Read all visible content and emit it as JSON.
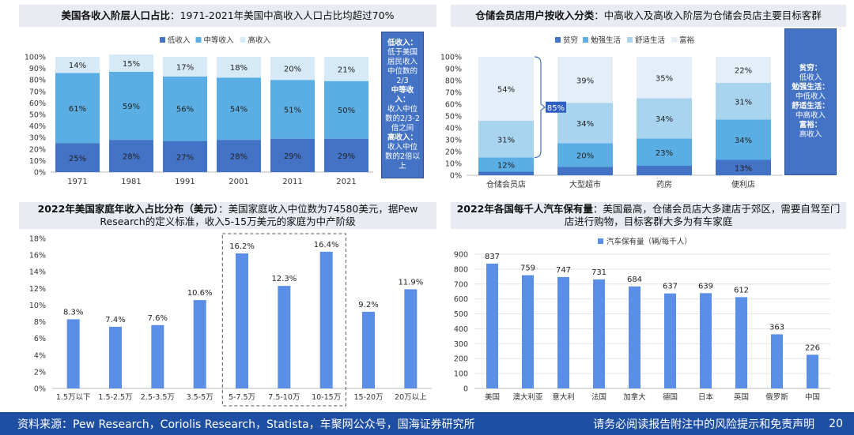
{
  "panels": {
    "p1": {
      "title_bold": "美国各收入阶层人口占比",
      "title_rest": "：1971-2021年美国中高收入人口占比均超过70%",
      "note": [
        {
          "head": "低收入：",
          "body": "低于美国居民收入中位数的2/3"
        },
        {
          "head": "中等收入：",
          "body": "收入中位数的2/3-2倍之间"
        },
        {
          "head": "高收入：",
          "body": "收入中位数的2倍以上"
        }
      ]
    },
    "p2": {
      "title_bold": "仓储会员店用户按收入分类",
      "title_rest": "：中高收入及高收入阶层为仓储会员店主要目标客群",
      "bracket_label": "85%",
      "note": [
        {
          "head": "贫穷：",
          "body": "低收入"
        },
        {
          "head": "勉强生活：",
          "body": "中低收入"
        },
        {
          "head": "舒适生活：",
          "body": "中高收入"
        },
        {
          "head": "富裕：",
          "body": "高收入"
        }
      ]
    },
    "p3": {
      "title_bold": "2022年美国家庭年收入占比分布（美元）",
      "title_rest": "：美国家庭收入中位数为74580美元，据Pew Research的定义标准，收入5-15万美元的家庭为中产阶级"
    },
    "p4": {
      "title_bold": "2022年各国每千人汽车保有量",
      "title_rest": "：美国最高，仓储会员店大多建店于郊区，需要自驾至门店进行购物，目标客群大多为有车家庭"
    }
  },
  "chart_data": [
    {
      "type": "bar",
      "stacked": true,
      "percent": true,
      "categories": [
        "1971",
        "1981",
        "1991",
        "2001",
        "2011",
        "2021"
      ],
      "series": [
        {
          "name": "低收入",
          "values": [
            25,
            28,
            27,
            28,
            29,
            29
          ],
          "color": "#4472c4"
        },
        {
          "name": "中等收入",
          "values": [
            61,
            59,
            56,
            54,
            51,
            50
          ],
          "color": "#5aaee3"
        },
        {
          "name": "高收入",
          "values": [
            14,
            15,
            17,
            18,
            20,
            21
          ],
          "color": "#d6e9f6"
        }
      ],
      "ylim": [
        0,
        100
      ],
      "yticks": [
        "0%",
        "10%",
        "20%",
        "30%",
        "40%",
        "50%",
        "60%",
        "70%",
        "80%",
        "90%",
        "100%"
      ],
      "legend": "top"
    },
    {
      "type": "bar",
      "stacked": true,
      "percent": true,
      "categories": [
        "仓储会员店",
        "大型超市",
        "药房",
        "便利店"
      ],
      "series": [
        {
          "name": "贫穷",
          "values": [
            3,
            7,
            8,
            13
          ],
          "color": "#4472c4"
        },
        {
          "name": "勉强生活",
          "values": [
            12,
            20,
            23,
            34
          ],
          "color": "#5aaee3"
        },
        {
          "name": "舒适生活",
          "values": [
            31,
            34,
            34,
            31
          ],
          "color": "#a9d4f0"
        },
        {
          "name": "富裕",
          "values": [
            54,
            39,
            35,
            22
          ],
          "color": "#e3eef8"
        }
      ],
      "ylim": [
        0,
        100
      ],
      "yticks": [
        "0%",
        "10%",
        "20%",
        "30%",
        "40%",
        "50%",
        "60%",
        "70%",
        "80%",
        "90%",
        "100%"
      ],
      "legend": "top"
    },
    {
      "type": "bar",
      "categories": [
        "1.5万以下",
        "1.5-2.5万",
        "2.5-3.5万",
        "3.5-5万",
        "5-7.5万",
        "7.5-10万",
        "10-15万",
        "15-20万",
        "20万以上"
      ],
      "values": [
        8.3,
        7.4,
        7.6,
        10.6,
        16.2,
        12.3,
        16.4,
        9.2,
        11.9
      ],
      "labels": [
        "8.3%",
        "7.4%",
        "7.6%",
        "10.6%",
        "16.2%",
        "12.3%",
        "16.4%",
        "9.2%",
        "11.9%"
      ],
      "ylim": [
        0,
        18
      ],
      "yticks": [
        "0%",
        "2%",
        "4%",
        "6%",
        "8%",
        "10%",
        "12%",
        "14%",
        "16%",
        "18%"
      ],
      "highlight": [
        "5-7.5万",
        "7.5-10万",
        "10-15万"
      ],
      "color": "#5b8ee6"
    },
    {
      "type": "bar",
      "categories": [
        "美国",
        "澳大利亚",
        "意大利",
        "法国",
        "加拿大",
        "德国",
        "日本",
        "英国",
        "俄罗斯",
        "中国"
      ],
      "series": [
        {
          "name": "汽车保有量（辆/每千人）",
          "values": [
            837,
            759,
            747,
            731,
            684,
            637,
            639,
            612,
            363,
            226
          ]
        }
      ],
      "ylim": [
        0,
        900
      ],
      "yticks": [
        "0",
        "100",
        "200",
        "300",
        "400",
        "500",
        "600",
        "700",
        "800",
        "900"
      ],
      "legend": "top",
      "color": "#5b8ee6"
    }
  ],
  "footer": {
    "source": "资料来源：Pew Research，Coriolis Research，Statista，车聚网公众号，国海证券研究所",
    "disclaimer": "请务必阅读报告附注中的风险提示和免责声明",
    "page": "20"
  }
}
